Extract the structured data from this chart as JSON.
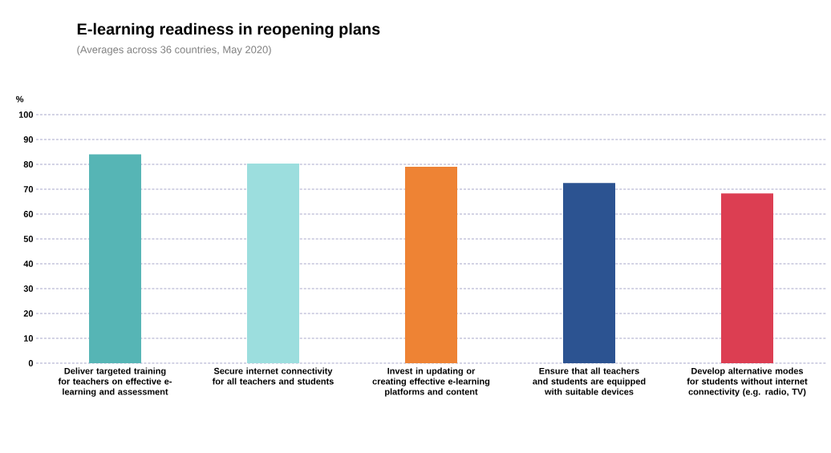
{
  "chart_data": {
    "type": "bar",
    "title": "E-learning readiness in reopening plans",
    "subtitle": "(Averages across 36 countries, May 2020)",
    "ylabel": "%",
    "categories": [
      "Deliver targeted training for teachers on effective e-learning and assessment",
      "Secure internet connectivity for all teachers and students",
      "Invest in updating or creating effective e-learning platforms and content",
      "Ensure that all teachers and students are equipped with suitable devices",
      "Develop alternative modes for students without internet connectivity (e.g. radio, TV)"
    ],
    "values": [
      84,
      80.3,
      79,
      72.5,
      68.3
    ],
    "colors": [
      "#56b5b5",
      "#9cdede",
      "#ee8334",
      "#2c5391",
      "#dc3e52"
    ],
    "ylim": [
      0,
      100
    ],
    "yticks": [
      0,
      10,
      20,
      30,
      40,
      50,
      60,
      70,
      80,
      90,
      100
    ],
    "grid": "y"
  }
}
